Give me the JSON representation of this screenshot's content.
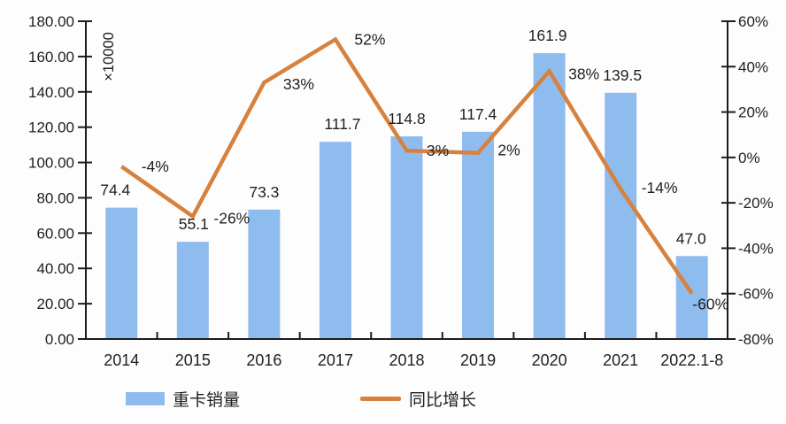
{
  "chart_data": {
    "type": "bar+line combo",
    "title": "",
    "categories": [
      "2014",
      "2015",
      "2016",
      "2017",
      "2018",
      "2019",
      "2020",
      "2021",
      "2022.1-8"
    ],
    "series": [
      {
        "name": "重卡销量",
        "type": "bar",
        "axis": "left",
        "color": "#8FBCEE",
        "values": [
          74.4,
          55.1,
          73.3,
          111.7,
          114.8,
          117.4,
          161.9,
          139.5,
          47.0
        ],
        "labels": [
          "74.4",
          "55.1",
          "73.3",
          "111.7",
          "114.8",
          "117.4",
          "161.9",
          "139.5",
          "47.0"
        ],
        "label_dx": [
          -7,
          1,
          0,
          8,
          0,
          0,
          -2,
          2,
          -1
        ]
      },
      {
        "name": "同比增长",
        "type": "line",
        "axis": "right",
        "color": "#D6813E",
        "values": [
          -4,
          -26,
          33,
          52,
          3,
          2,
          38,
          -14,
          -60
        ],
        "labels": [
          "-4%",
          "-26%",
          "33%",
          "52%",
          "3%",
          "2%",
          "38%",
          "-14%",
          "-60%"
        ],
        "label_offsets": [
          [
            38,
            0
          ],
          [
            44,
            2
          ],
          [
            39,
            2
          ],
          [
            39,
            0
          ],
          [
            35,
            0
          ],
          [
            35,
            -3
          ],
          [
            39,
            3
          ],
          [
            44,
            -2
          ],
          [
            21,
            12
          ]
        ]
      }
    ],
    "left_axis": {
      "min": 0,
      "max": 180,
      "step": 20,
      "decimals": 2,
      "unit_label": "×10000"
    },
    "right_axis": {
      "min": -80,
      "max": 60,
      "step": 20,
      "suffix": "%"
    },
    "grid": false,
    "legend": {
      "position": "bottom",
      "items": [
        {
          "label": "重卡销量",
          "marker": "bar"
        },
        {
          "label": "同比增长",
          "marker": "line"
        }
      ]
    }
  },
  "colors": {
    "bar": "#8FBCEE",
    "line": "#D6813E",
    "axis": "#1c1c1c",
    "text": "#1f1f1f",
    "background": "#fdfdfd"
  }
}
